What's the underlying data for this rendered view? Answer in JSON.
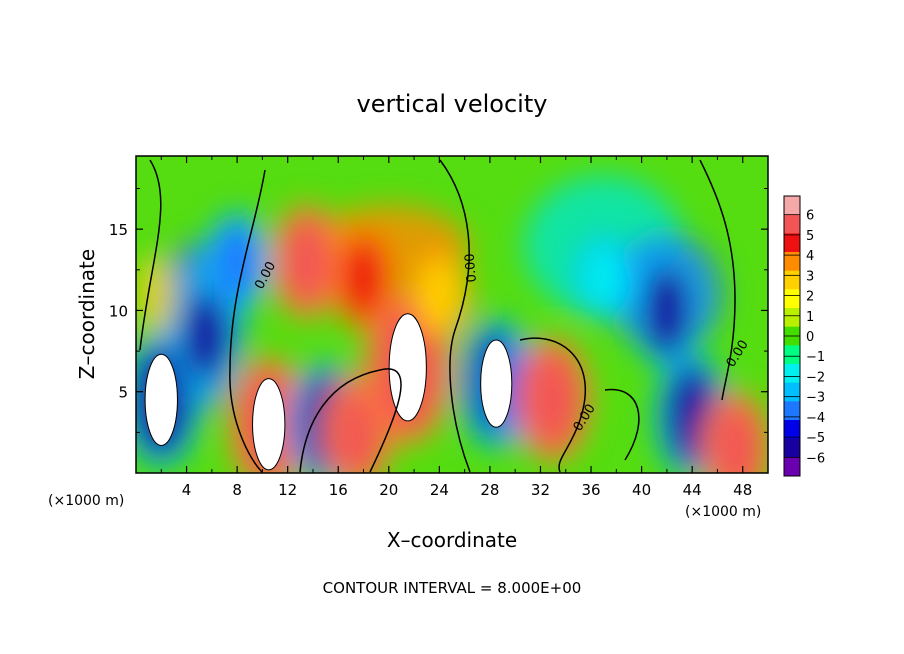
{
  "chart_data": {
    "type": "heatmap",
    "title": "vertical velocity",
    "xlabel": "X–coordinate",
    "ylabel": "Z–coordinate",
    "xlim": [
      0,
      50
    ],
    "ylim": [
      0,
      19.5
    ],
    "x_ticks": [
      4,
      8,
      12,
      16,
      20,
      24,
      28,
      32,
      36,
      40,
      44,
      48
    ],
    "y_ticks": [
      5,
      10,
      15
    ],
    "x_unit": "(×1000 m)",
    "y_unit": "(×1000 m)",
    "footer": "CONTOUR INTERVAL = 8.000E+00",
    "contour_labels": [
      "0.00",
      "0.00",
      "0.00",
      "0.00"
    ],
    "colorbar": {
      "ticks": [
        6,
        5,
        4,
        3,
        2,
        1,
        0,
        -1,
        -2,
        -3,
        -4,
        -5,
        -6
      ],
      "colors": [
        "#f4a8a8",
        "#f25555",
        "#ee1111",
        "#ff8c00",
        "#ffd000",
        "#ffff00",
        "#b8f000",
        "#44dd00",
        "#00ff80",
        "#00f0f0",
        "#00bfff",
        "#1e78ff",
        "#0000e8",
        "#1800a0",
        "#6a00b0"
      ]
    },
    "features": [
      {
        "x": 2.0,
        "z": 4.5,
        "w": -7
      },
      {
        "x": 5.5,
        "z": 8.5,
        "w": -5
      },
      {
        "x": 8.0,
        "z": 13.0,
        "w": -3.5
      },
      {
        "x": 10.5,
        "z": 3.0,
        "w": 7
      },
      {
        "x": 15.0,
        "z": 3.0,
        "w": -6
      },
      {
        "x": 13.5,
        "z": 13.0,
        "w": 5
      },
      {
        "x": 18.0,
        "z": 12.0,
        "w": 4
      },
      {
        "x": 17.5,
        "z": 2.5,
        "w": 5
      },
      {
        "x": 21.5,
        "z": 6.5,
        "w": 9
      },
      {
        "x": 24.0,
        "z": 11.0,
        "w": 3
      },
      {
        "x": 28.5,
        "z": 5.5,
        "w": -6.5
      },
      {
        "x": 30.5,
        "z": 5.0,
        "w": -4
      },
      {
        "x": 33.0,
        "z": 4.5,
        "w": 6
      },
      {
        "x": 37.0,
        "z": 12.0,
        "w": -2
      },
      {
        "x": 42.0,
        "z": 10.0,
        "w": -5
      },
      {
        "x": 44.0,
        "z": 3.5,
        "w": -6
      },
      {
        "x": 47.5,
        "z": 1.5,
        "w": 5
      }
    ]
  }
}
